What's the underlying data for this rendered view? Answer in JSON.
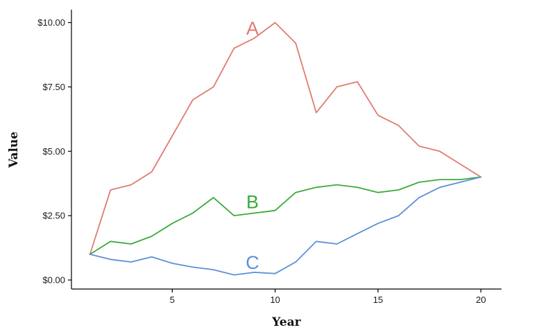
{
  "chart_data": {
    "type": "line",
    "title": "",
    "xlabel": "Year",
    "ylabel": "Value",
    "xlim": [
      0.1,
      21
    ],
    "ylim": [
      -0.35,
      10.5
    ],
    "xticks": [
      5,
      10,
      15,
      20
    ],
    "xtick_labels": [
      "5",
      "10",
      "15",
      "20"
    ],
    "yticks": [
      0,
      2.5,
      5,
      7.5,
      10
    ],
    "ytick_labels": [
      "$0.00",
      "$2.50",
      "$5.00",
      "$7.50",
      "$10.00"
    ],
    "grid": false,
    "legend": "none",
    "x": [
      1,
      2,
      3,
      4,
      5,
      6,
      7,
      8,
      9,
      10,
      11,
      12,
      13,
      14,
      15,
      16,
      17,
      18,
      19,
      20
    ],
    "series": [
      {
        "name": "A",
        "color": "#e07b70",
        "label_at": [
          8.9,
          9.8
        ],
        "values": [
          1.0,
          3.5,
          3.7,
          4.2,
          5.6,
          7.0,
          7.5,
          9.0,
          9.4,
          10.0,
          9.2,
          6.5,
          7.5,
          7.7,
          6.4,
          6.0,
          5.2,
          5.0,
          4.5,
          4.0
        ]
      },
      {
        "name": "B",
        "color": "#3aab3a",
        "label_at": [
          8.9,
          3.05
        ],
        "values": [
          1.0,
          1.5,
          1.4,
          1.7,
          2.2,
          2.6,
          3.2,
          2.5,
          2.6,
          2.7,
          3.4,
          3.6,
          3.7,
          3.6,
          3.4,
          3.5,
          3.8,
          3.9,
          3.9,
          4.0
        ]
      },
      {
        "name": "C",
        "color": "#5b8fd9",
        "label_at": [
          8.9,
          0.7
        ],
        "values": [
          1.0,
          0.8,
          0.7,
          0.9,
          0.65,
          0.5,
          0.4,
          0.2,
          0.3,
          0.25,
          0.7,
          1.5,
          1.4,
          1.8,
          2.2,
          2.5,
          3.2,
          3.6,
          3.8,
          4.0
        ]
      }
    ]
  }
}
